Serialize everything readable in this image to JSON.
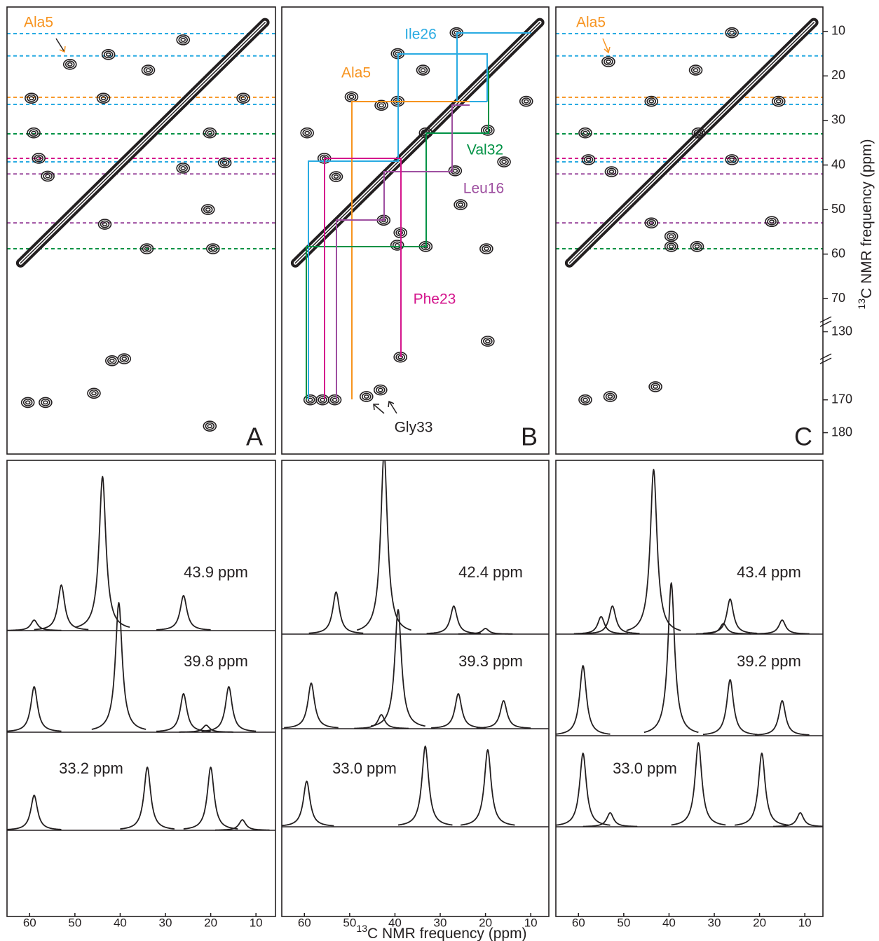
{
  "chart_data": [
    {
      "type": "contour",
      "panel": "A",
      "xlim": [
        65,
        6
      ],
      "ylim_segments": [
        [
          5,
          75
        ],
        [
          127,
          137
        ],
        [
          156,
          185
        ]
      ],
      "x": [
        26.1,
        42.6,
        51.1,
        33.8,
        43.7,
        59.6,
        12.8,
        59.1,
        20.2,
        58.0,
        56.0,
        26.1,
        16.9,
        43.4,
        34.1,
        19.5,
        20.6,
        41.8,
        39.1,
        60.4,
        56.5,
        45.8,
        20.2
      ],
      "y": [
        11.9,
        15.2,
        17.4,
        18.7,
        25.0,
        25.0,
        25.0,
        32.8,
        32.8,
        38.5,
        42.5,
        40.7,
        39.5,
        53.3,
        58.8,
        58.8,
        50.0,
        158.1,
        157.5,
        170.8,
        170.8,
        168.0,
        178.0
      ],
      "hlines": {
        "y": [
          10.5,
          15.5,
          24.8,
          26.4,
          33.0,
          38.5,
          39.3,
          42.0,
          53.0,
          58.8
        ],
        "colors": [
          "#29abe2",
          "#29abe2",
          "#f7931e",
          "#29abe2",
          "#009245",
          "#d4148c",
          "#29abe2",
          "#9e4fa0",
          "#9e4fa0",
          "#009245"
        ]
      },
      "labels": [
        {
          "text": "Ala5",
          "color": "#f7931e"
        }
      ]
    },
    {
      "type": "contour",
      "panel": "B",
      "xlim": [
        65,
        6
      ],
      "ylim_segments": [
        [
          5,
          75
        ],
        [
          127,
          137
        ],
        [
          156,
          185
        ]
      ],
      "x": [
        26.4,
        39.4,
        33.8,
        49.6,
        39.4,
        43.0,
        11.0,
        59.4,
        33.2,
        19.5,
        55.6,
        53.0,
        26.7,
        15.9,
        25.5,
        42.5,
        38.8,
        39.5,
        33.2,
        19.8,
        38.8,
        19.5,
        58.7,
        56.0,
        53.3,
        46.3,
        43.2
      ],
      "y": [
        10.3,
        15.0,
        18.7,
        24.7,
        25.7,
        26.6,
        25.7,
        32.8,
        32.8,
        32.2,
        38.5,
        42.6,
        41.3,
        39.3,
        48.9,
        52.4,
        55.2,
        58.0,
        58.3,
        58.8,
        157.0,
        133.0,
        170.0,
        170.0,
        170.0,
        169.0,
        167.0
      ],
      "labels": [
        {
          "text": "Ile26",
          "color": "#29abe2"
        },
        {
          "text": "Ala5",
          "color": "#f7931e"
        },
        {
          "text": "Val32",
          "color": "#009245"
        },
        {
          "text": "Leu16",
          "color": "#9e4fa0"
        },
        {
          "text": "Phe23",
          "color": "#d4148c"
        },
        {
          "text": "Gly33",
          "color": "#231f20"
        }
      ]
    },
    {
      "type": "contour",
      "panel": "C",
      "xlim": [
        65,
        6
      ],
      "ylim_segments": [
        [
          5,
          75
        ],
        [
          127,
          137
        ],
        [
          156,
          185
        ]
      ],
      "x": [
        26.1,
        34.1,
        53.4,
        43.9,
        15.8,
        58.5,
        33.5,
        26.1,
        57.8,
        52.7,
        43.9,
        17.3,
        39.5,
        33.8,
        39.5,
        58.5,
        53.0,
        43.0
      ],
      "y": [
        10.3,
        18.7,
        16.8,
        25.7,
        25.7,
        32.8,
        32.8,
        38.8,
        38.8,
        41.5,
        53.0,
        52.7,
        58.3,
        58.3,
        56.0,
        170.0,
        169.0,
        166.0
      ],
      "hlines": {
        "y": [
          10.5,
          15.5,
          24.8,
          26.4,
          33.0,
          38.5,
          39.3,
          42.0,
          53.0,
          58.8
        ],
        "colors": [
          "#29abe2",
          "#29abe2",
          "#f7931e",
          "#29abe2",
          "#009245",
          "#d4148c",
          "#29abe2",
          "#9e4fa0",
          "#9e4fa0",
          "#009245"
        ]
      },
      "labels": [
        {
          "text": "Ala5",
          "color": "#f7931e"
        }
      ],
      "yticks": [
        10,
        20,
        30,
        40,
        50,
        60,
        70,
        130,
        170,
        180
      ],
      "y_label": {
        "sup": "13",
        "text": "C NMR frequency (ppm)"
      }
    },
    {
      "type": "slices",
      "xlim": [
        65,
        6
      ],
      "xticks": [
        60,
        50,
        40,
        30,
        20,
        10
      ],
      "traces": [
        {
          "label": "43.9 ppm",
          "x": [
            59,
            53,
            43.9,
            26
          ],
          "values": [
            15,
            65,
            220,
            50
          ]
        },
        {
          "label": "39.8 ppm",
          "x": [
            59,
            40.3,
            26,
            21,
            16
          ],
          "values": [
            65,
            185,
            55,
            10,
            65
          ]
        },
        {
          "label": "33.2 ppm",
          "x": [
            59,
            34,
            20,
            13
          ],
          "values": [
            50,
            90,
            90,
            15
          ]
        }
      ]
    },
    {
      "type": "slices",
      "xlim": [
        65,
        6
      ],
      "xticks": [
        60,
        50,
        40,
        30,
        20,
        10
      ],
      "x_label": {
        "sup": "13",
        "text": "C NMR frequency (ppm)"
      },
      "traces": [
        {
          "label": "42.4 ppm",
          "x": [
            53,
            42.4,
            27,
            20
          ],
          "values": [
            60,
            260,
            40,
            8
          ]
        },
        {
          "label": "39.3 ppm",
          "x": [
            58.5,
            43,
            39.3,
            26,
            16
          ],
          "values": [
            65,
            20,
            170,
            50,
            40
          ]
        },
        {
          "label": "33.0 ppm",
          "x": [
            59.5,
            33.3,
            19.5
          ],
          "values": [
            65,
            115,
            110
          ]
        }
      ]
    },
    {
      "type": "slices",
      "xlim": [
        65,
        6
      ],
      "xticks": [
        60,
        50,
        40,
        30,
        20,
        10
      ],
      "traces": [
        {
          "label": "43.4 ppm",
          "x": [
            55,
            52.5,
            43.4,
            28,
            26.5,
            15
          ],
          "values": [
            25,
            40,
            235,
            15,
            50,
            20
          ]
        },
        {
          "label": "39.2 ppm",
          "x": [
            59,
            39.5,
            26.5,
            15
          ],
          "values": [
            100,
            218,
            80,
            50
          ]
        },
        {
          "label": "33.0 ppm",
          "x": [
            59,
            53,
            33.5,
            19.5,
            11
          ],
          "values": [
            105,
            20,
            120,
            105,
            20
          ]
        }
      ]
    }
  ]
}
